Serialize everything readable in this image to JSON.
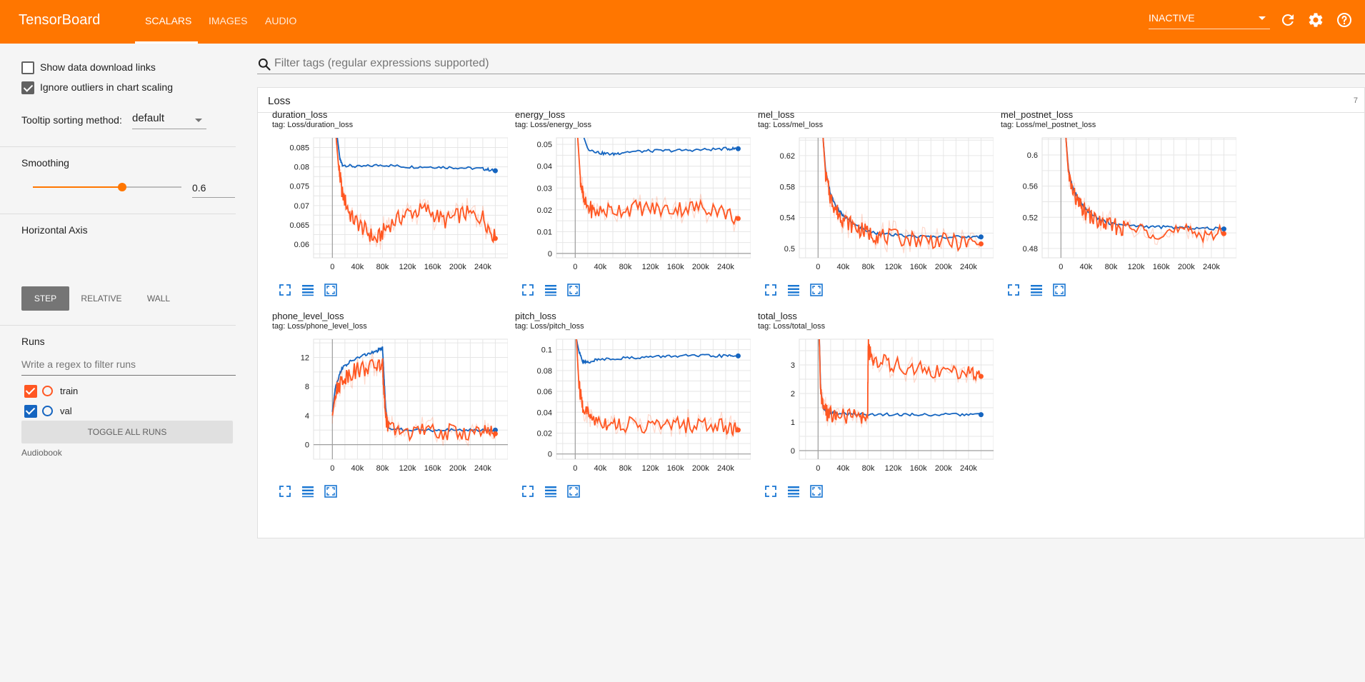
{
  "header": {
    "brand": "TensorBoard",
    "tabs": [
      {
        "label": "SCALARS"
      },
      {
        "label": "IMAGES"
      },
      {
        "label": "AUDIO"
      }
    ],
    "status": "INACTIVE",
    "accent_color": "#ff7600"
  },
  "sidebar": {
    "show_download_label": "Show data download links",
    "show_download_checked": false,
    "ignore_outliers_label": "Ignore outliers in chart scaling",
    "ignore_outliers_checked": true,
    "tooltip_sort_label": "Tooltip sorting method:",
    "tooltip_sort_value": "default",
    "smoothing_label": "Smoothing",
    "smoothing_value": "0.6",
    "smoothing_fraction": 0.6,
    "horizontal_axis_label": "Horizontal Axis",
    "axis_options": [
      "STEP",
      "RELATIVE",
      "WALL"
    ],
    "axis_selected": "STEP",
    "runs_label": "Runs",
    "runs_filter_placeholder": "Write a regex to filter runs",
    "runs": [
      {
        "name": "train",
        "color": "#ff5722",
        "checked": true
      },
      {
        "name": "val",
        "color": "#1565c0",
        "checked": true
      }
    ],
    "toggle_all_label": "TOGGLE ALL RUNS",
    "logdir_label": "Audiobook"
  },
  "main": {
    "filter_placeholder": "Filter tags (regular expressions supported)",
    "group": {
      "title": "Loss",
      "count": "7"
    }
  },
  "chart_data": [
    {
      "type": "line",
      "title": "duration_loss",
      "tag": "tag: Loss/duration_loss",
      "x_ticks": [
        "0",
        "40k",
        "80k",
        "120k",
        "160k",
        "200k",
        "240k"
      ],
      "xlim": [
        -30000,
        280000
      ],
      "y_ticks": [
        "0.06",
        "0.065",
        "0.07",
        "0.075",
        "0.08",
        "0.085"
      ],
      "ylim": [
        0.0565,
        0.0875
      ],
      "series": [
        {
          "name": "val",
          "x": [
            8000,
            12000,
            16000,
            40000,
            80000,
            120000,
            160000,
            200000,
            240000,
            260000
          ],
          "y": [
            0.0875,
            0.082,
            0.0805,
            0.08,
            0.0805,
            0.08,
            0.08,
            0.0798,
            0.0795,
            0.079
          ]
        },
        {
          "name": "train",
          "x": [
            6000,
            10000,
            16000,
            30000,
            50000,
            70000,
            90000,
            120000,
            150000,
            180000,
            210000,
            240000,
            260000
          ],
          "y": [
            0.0875,
            0.08,
            0.073,
            0.067,
            0.064,
            0.061,
            0.065,
            0.068,
            0.069,
            0.066,
            0.068,
            0.067,
            0.0615
          ]
        }
      ]
    },
    {
      "type": "line",
      "title": "energy_loss",
      "tag": "tag: Loss/energy_loss",
      "x_ticks": [
        "0",
        "40k",
        "80k",
        "120k",
        "160k",
        "200k",
        "240k"
      ],
      "xlim": [
        -30000,
        280000
      ],
      "y_ticks": [
        "0",
        "0.01",
        "0.02",
        "0.03",
        "0.04",
        "0.05"
      ],
      "ylim": [
        -0.002,
        0.053
      ],
      "series": [
        {
          "name": "val",
          "x": [
            14000,
            20000,
            40000,
            60000,
            80000,
            120000,
            160000,
            200000,
            240000,
            260000
          ],
          "y": [
            0.053,
            0.048,
            0.046,
            0.0455,
            0.0465,
            0.047,
            0.0472,
            0.0475,
            0.048,
            0.048
          ]
        },
        {
          "name": "train",
          "x": [
            4000,
            8000,
            14000,
            30000,
            60000,
            100000,
            140000,
            180000,
            220000,
            260000
          ],
          "y": [
            0.053,
            0.035,
            0.023,
            0.019,
            0.02,
            0.021,
            0.02,
            0.021,
            0.021,
            0.016
          ]
        }
      ]
    },
    {
      "type": "line",
      "title": "mel_loss",
      "tag": "tag: Loss/mel_loss",
      "x_ticks": [
        "0",
        "40k",
        "80k",
        "120k",
        "160k",
        "200k",
        "240k"
      ],
      "xlim": [
        -30000,
        280000
      ],
      "y_ticks": [
        "0.5",
        "0.54",
        "0.58",
        "0.62"
      ],
      "ylim": [
        0.488,
        0.643
      ],
      "series": [
        {
          "name": "val",
          "x": [
            8000,
            12000,
            20000,
            30000,
            40000,
            60000,
            80000,
            100000,
            140000,
            180000,
            220000,
            260000
          ],
          "y": [
            0.643,
            0.6,
            0.57,
            0.552,
            0.542,
            0.53,
            0.522,
            0.519,
            0.516,
            0.515,
            0.515,
            0.515
          ]
        },
        {
          "name": "train",
          "x": [
            8000,
            12000,
            20000,
            30000,
            40000,
            60000,
            80000,
            100000,
            140000,
            180000,
            220000,
            260000
          ],
          "y": [
            0.643,
            0.595,
            0.565,
            0.548,
            0.538,
            0.527,
            0.52,
            0.516,
            0.513,
            0.511,
            0.508,
            0.506
          ]
        }
      ]
    },
    {
      "type": "line",
      "title": "mel_postnet_loss",
      "tag": "tag: Loss/mel_postnet_loss",
      "x_ticks": [
        "0",
        "40k",
        "80k",
        "120k",
        "160k",
        "200k",
        "240k"
      ],
      "xlim": [
        -30000,
        280000
      ],
      "y_ticks": [
        "0.48",
        "0.52",
        "0.56",
        "0.6"
      ],
      "ylim": [
        0.468,
        0.622
      ],
      "series": [
        {
          "name": "val",
          "x": [
            8000,
            12000,
            20000,
            30000,
            40000,
            60000,
            80000,
            100000,
            140000,
            180000,
            220000,
            260000
          ],
          "y": [
            0.622,
            0.58,
            0.555,
            0.54,
            0.53,
            0.518,
            0.512,
            0.51,
            0.508,
            0.507,
            0.506,
            0.505
          ]
        },
        {
          "name": "train",
          "x": [
            8000,
            12000,
            20000,
            30000,
            40000,
            60000,
            80000,
            100000,
            140000,
            180000,
            220000,
            260000
          ],
          "y": [
            0.622,
            0.575,
            0.55,
            0.535,
            0.525,
            0.514,
            0.509,
            0.506,
            0.503,
            0.501,
            0.5,
            0.499
          ]
        }
      ]
    },
    {
      "type": "line",
      "title": "phone_level_loss",
      "tag": "tag: Loss/phone_level_loss",
      "x_ticks": [
        "0",
        "40k",
        "80k",
        "120k",
        "160k",
        "200k",
        "240k"
      ],
      "xlim": [
        -30000,
        280000
      ],
      "y_ticks": [
        "0",
        "4",
        "8",
        "12"
      ],
      "ylim": [
        -2,
        14.5
      ],
      "series": [
        {
          "name": "val",
          "x": [
            0,
            5000,
            15000,
            30000,
            50000,
            70000,
            80000,
            82000,
            85000,
            90000,
            120000,
            160000,
            200000,
            240000,
            260000
          ],
          "y": [
            4.5,
            8,
            10.5,
            11.5,
            12.3,
            12.8,
            13.3,
            10,
            5,
            2.2,
            2,
            2,
            2,
            2,
            2
          ]
        },
        {
          "name": "train",
          "x": [
            0,
            5000,
            15000,
            30000,
            50000,
            70000,
            80000,
            82000,
            85000,
            90000,
            120000,
            160000,
            200000,
            240000,
            260000
          ],
          "y": [
            4,
            7,
            9,
            10,
            10.5,
            10.8,
            11,
            8,
            4,
            2,
            1.8,
            1.7,
            1.7,
            1.6,
            1.5
          ]
        }
      ]
    },
    {
      "type": "line",
      "title": "pitch_loss",
      "tag": "tag: Loss/pitch_loss",
      "x_ticks": [
        "0",
        "40k",
        "80k",
        "120k",
        "160k",
        "200k",
        "240k"
      ],
      "xlim": [
        -30000,
        280000
      ],
      "y_ticks": [
        "0",
        "0.02",
        "0.04",
        "0.06",
        "0.08",
        "0.1"
      ],
      "ylim": [
        -0.005,
        0.11
      ],
      "series": [
        {
          "name": "val",
          "x": [
            2000,
            6000,
            12000,
            20000,
            40000,
            80000,
            120000,
            160000,
            200000,
            240000,
            260000
          ],
          "y": [
            0.11,
            0.098,
            0.088,
            0.088,
            0.091,
            0.092,
            0.093,
            0.094,
            0.094,
            0.094,
            0.094
          ]
        },
        {
          "name": "train",
          "x": [
            2000,
            6000,
            12000,
            25000,
            50000,
            80000,
            120000,
            160000,
            200000,
            240000,
            260000
          ],
          "y": [
            0.11,
            0.065,
            0.045,
            0.035,
            0.03,
            0.028,
            0.027,
            0.028,
            0.028,
            0.027,
            0.023
          ]
        }
      ]
    },
    {
      "type": "line",
      "title": "total_loss",
      "tag": "tag: Loss/total_loss",
      "x_ticks": [
        "0",
        "40k",
        "80k",
        "120k",
        "160k",
        "200k",
        "240k"
      ],
      "xlim": [
        -30000,
        280000
      ],
      "y_ticks": [
        "0",
        "1",
        "2",
        "3"
      ],
      "ylim": [
        -0.3,
        3.9
      ],
      "series": [
        {
          "name": "val",
          "x": [
            2000,
            4000,
            8000,
            15000,
            30000,
            60000,
            100000,
            140000,
            180000,
            220000,
            260000
          ],
          "y": [
            3.9,
            2.2,
            1.5,
            1.35,
            1.3,
            1.28,
            1.27,
            1.26,
            1.26,
            1.26,
            1.26
          ]
        },
        {
          "name": "train",
          "x": [
            2000,
            4000,
            8000,
            15000,
            30000,
            60000,
            79000,
            80000,
            82000,
            90000,
            120000,
            160000,
            200000,
            240000,
            260000
          ],
          "y": [
            3.9,
            2.0,
            1.45,
            1.3,
            1.22,
            1.18,
            1.15,
            3.8,
            3.4,
            3.2,
            3.0,
            2.85,
            2.75,
            2.7,
            2.6
          ]
        }
      ]
    }
  ]
}
